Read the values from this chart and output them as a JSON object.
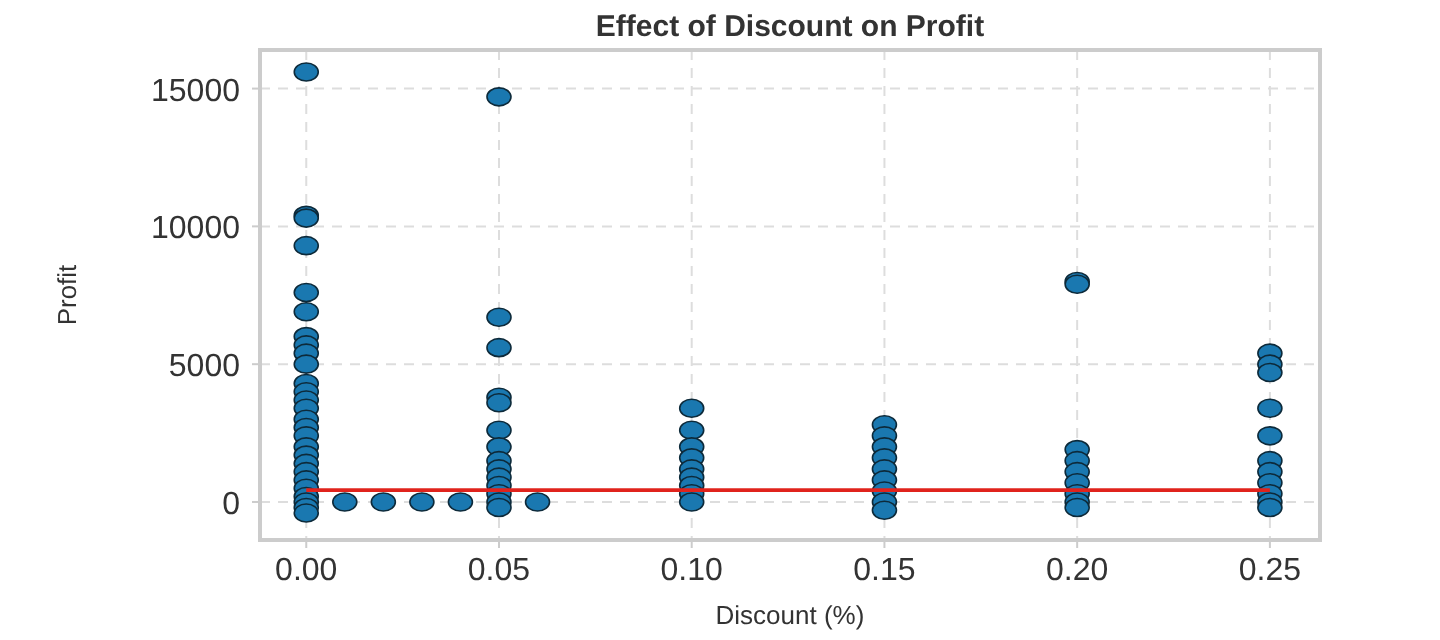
{
  "chart_data": {
    "type": "scatter",
    "title": "Effect of Discount on Profit",
    "xlabel": "Discount (%)",
    "ylabel": "Profit",
    "grid": true,
    "xlim": [
      -0.012,
      0.263
    ],
    "xticks": [
      {
        "value": 0,
        "label": "0.00"
      },
      {
        "value": 0.05,
        "label": "0.05"
      },
      {
        "value": 0.1,
        "label": "0.10"
      },
      {
        "value": 0.15,
        "label": "0.15"
      },
      {
        "value": 0.2,
        "label": "0.20"
      },
      {
        "value": 0.25,
        "label": "0.25"
      }
    ],
    "ylim": [
      -1380,
      16400
    ],
    "yticks": [
      0,
      5000,
      10000,
      15000
    ],
    "series": [
      {
        "marker": "circle",
        "color": "#1a78b0",
        "x": [
          0,
          0,
          0,
          0,
          0,
          0,
          0,
          0,
          0,
          0,
          0,
          0,
          0,
          0,
          0,
          0,
          0,
          0,
          0,
          0,
          0,
          0,
          0,
          0,
          0,
          0,
          0,
          0.01,
          0.02,
          0.03,
          0.04,
          0.06,
          0.05,
          0.05,
          0.05,
          0.05,
          0.05,
          0.05,
          0.05,
          0.05,
          0.05,
          0.05,
          0.05,
          0.05,
          0.05,
          0.05,
          0.1,
          0.1,
          0.1,
          0.1,
          0.1,
          0.1,
          0.1,
          0.1,
          0.1,
          0.15,
          0.15,
          0.15,
          0.15,
          0.15,
          0.15,
          0.15,
          0.15,
          0.15,
          0.2,
          0.2,
          0.2,
          0.2,
          0.2,
          0.2,
          0.2,
          0.2,
          0.2,
          0.25,
          0.25,
          0.25,
          0.25,
          0.25,
          0.25,
          0.25,
          0.25,
          0.25,
          0.25,
          0.25
        ],
        "values": [
          15600,
          10400,
          10300,
          9300,
          7600,
          6900,
          6000,
          5700,
          5400,
          5000,
          4300,
          4000,
          3700,
          3400,
          3000,
          2700,
          2400,
          2000,
          1700,
          1400,
          1100,
          800,
          500,
          200,
          0,
          -200,
          -400,
          0,
          0,
          0,
          0,
          0,
          14700,
          6700,
          5600,
          3800,
          3600,
          2600,
          2000,
          1500,
          1200,
          900,
          600,
          300,
          0,
          -200,
          3400,
          2600,
          2000,
          1600,
          1200,
          900,
          600,
          300,
          0,
          2800,
          2400,
          2000,
          1600,
          1200,
          800,
          400,
          0,
          -300,
          8000,
          7900,
          1900,
          1500,
          1100,
          700,
          300,
          0,
          -200,
          5400,
          5000,
          4700,
          3400,
          2400,
          1500,
          1100,
          700,
          300,
          0,
          -200
        ]
      },
      {
        "type": "line",
        "color": "#e0231c",
        "x": [
          0,
          0.25
        ],
        "values": [
          430,
          430
        ]
      }
    ]
  }
}
